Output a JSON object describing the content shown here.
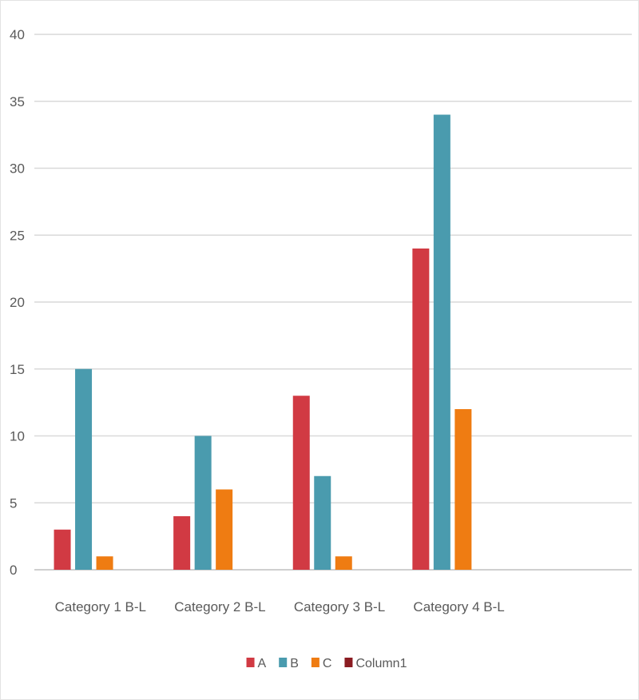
{
  "chart_data": {
    "type": "bar",
    "categories": [
      "Category 1 B-L",
      "Category 2 B-L",
      "Category 3 B-L",
      "Category 4 B-L",
      ""
    ],
    "series": [
      {
        "name": "A",
        "color": "#d13a43",
        "values": [
          3,
          4,
          13,
          24,
          null
        ]
      },
      {
        "name": "B",
        "color": "#4a9bae",
        "values": [
          15,
          10,
          7,
          34,
          null
        ]
      },
      {
        "name": "C",
        "color": "#ef7c12",
        "values": [
          1,
          6,
          1,
          12,
          null
        ]
      },
      {
        "name": "Column1",
        "color": "#8b1c22",
        "values": [
          null,
          null,
          null,
          null,
          null
        ]
      }
    ],
    "title": "",
    "xlabel": "",
    "ylabel": "",
    "ylim": [
      0,
      40
    ],
    "yticks": [
      0,
      5,
      10,
      15,
      20,
      25,
      30,
      35,
      40
    ],
    "grid": true,
    "legend_position": "bottom"
  }
}
